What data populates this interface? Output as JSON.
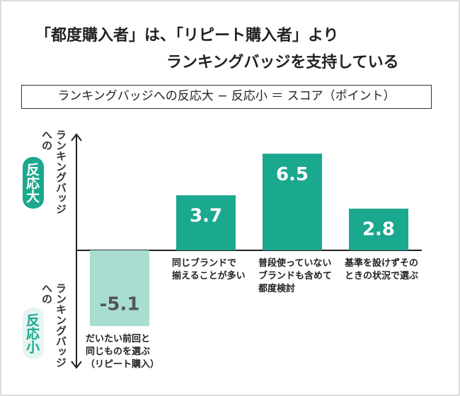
{
  "chart_data": {
    "type": "bar",
    "title": [
      "「都度購入者」は、「リピート購入者」より",
      "ランキングバッジを支持している"
    ],
    "subtitle": "ランキングバッジへの反応大 − 反応小 ＝ スコア（ポイント）",
    "y_label_top": {
      "text": "ランキングバッジ\nへの",
      "badge": "反応大"
    },
    "y_label_bottom": {
      "text": "ランキングバッジ\nへの",
      "badge": "反応小"
    },
    "categories": [
      "だいたい前回と\n同じものを選ぶ\n（リピート購入）",
      "同じブランドで\n揃えることが多い",
      "普段使っていない\nブランドも含めて\n都度検討",
      "基準を設けずその\nときの状況で選ぶ"
    ],
    "values": [
      -5.1,
      3.7,
      6.5,
      2.8
    ],
    "colors": [
      "#a8ded1",
      "#1aa88e",
      "#1aa88e",
      "#1aa88e"
    ],
    "ylim": [
      -7.9,
      7.8
    ]
  }
}
